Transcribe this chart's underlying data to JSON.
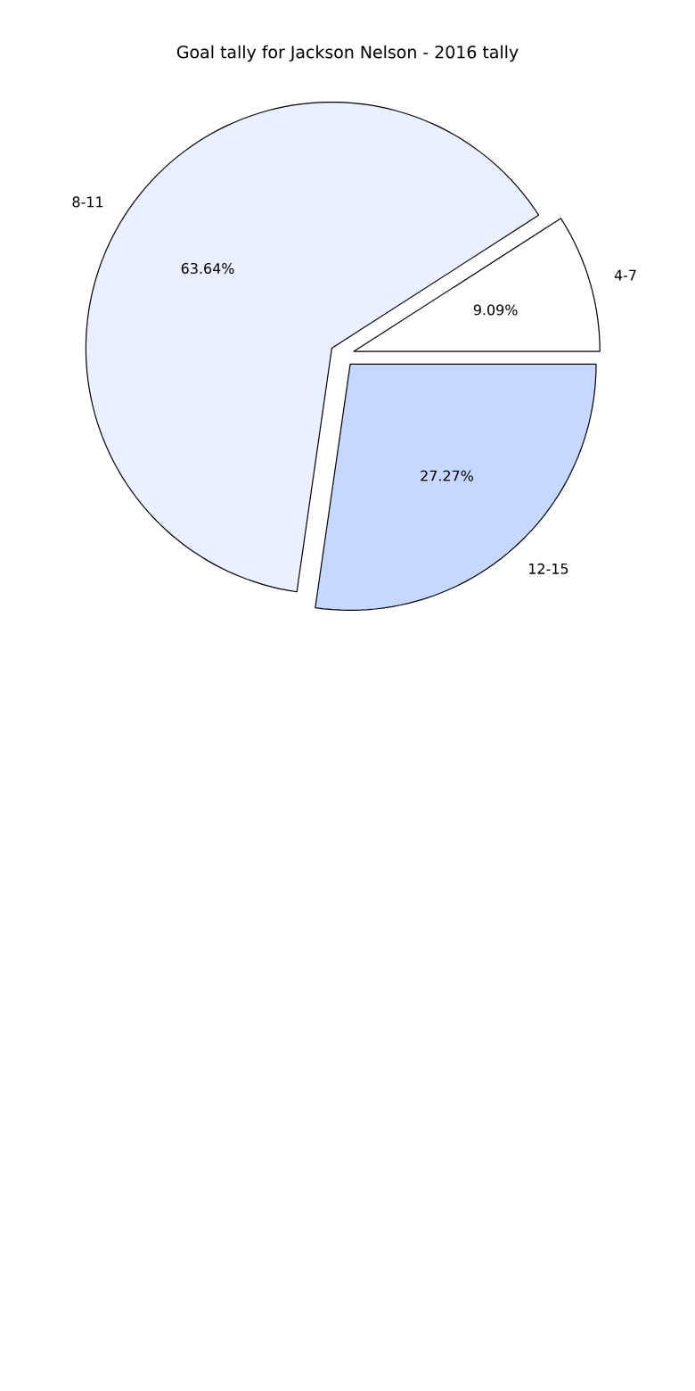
{
  "chart_data": {
    "type": "pie",
    "title": "Goal tally for Jackson Nelson - 2016 tally",
    "categories": [
      "4-7",
      "8-11",
      "12-15"
    ],
    "values": [
      9.09,
      63.64,
      27.27
    ],
    "colors": [
      "#ffffff",
      "#eaf0ff",
      "#c6d8ff"
    ],
    "value_labels": [
      "9.09%",
      "63.64%",
      "27.27%"
    ]
  }
}
